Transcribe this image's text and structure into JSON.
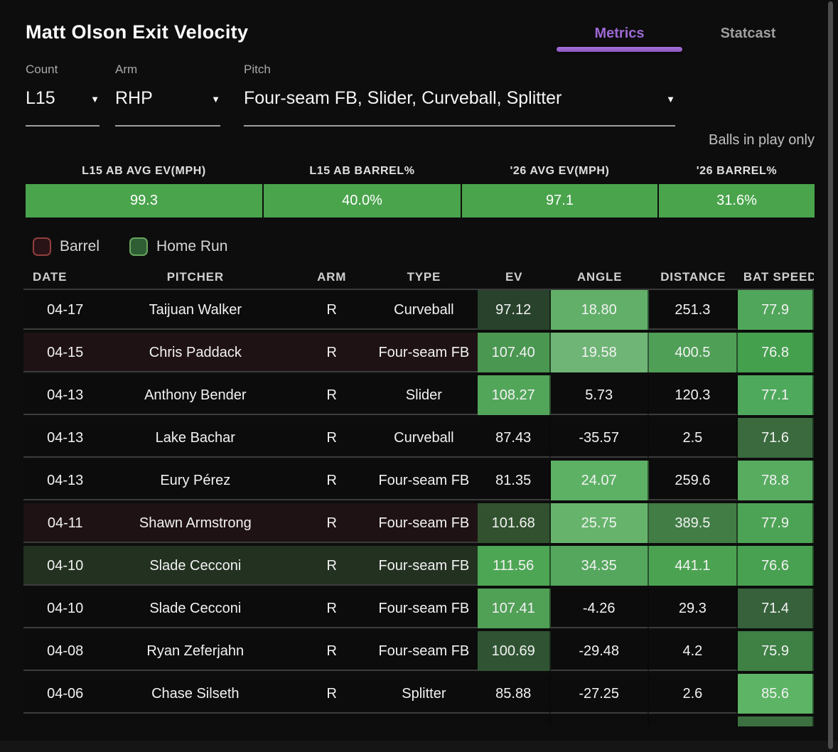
{
  "page": {
    "title": "Matt Olson Exit Velocity",
    "note": "Balls in play only"
  },
  "tabs": [
    {
      "label": "Metrics",
      "active": true
    },
    {
      "label": "Statcast",
      "active": false
    }
  ],
  "filters": [
    {
      "label": "Count",
      "value": "L15"
    },
    {
      "label": "Arm",
      "value": "RHP"
    },
    {
      "label": "Pitch",
      "value": "Four-seam FB, Slider, Curveball, Splitter"
    }
  ],
  "summary": [
    {
      "label": "L15 AB AVG EV(MPH)",
      "value": "99.3"
    },
    {
      "label": "L15 AB BARREL%",
      "value": "40.0%"
    },
    {
      "label": "'26 AVG EV(MPH)",
      "value": "97.1"
    },
    {
      "label": "'26 BARREL%",
      "value": "31.6%"
    }
  ],
  "legend": [
    {
      "label": "Barrel",
      "fill": "#291316",
      "border": "#91403f"
    },
    {
      "label": "Home Run",
      "fill": "#2f5d34",
      "border": "#68a55e"
    }
  ],
  "colors": {
    "accent_purple": "#9d68d3",
    "summary_green": "#4aa44c",
    "barrel_row_bg": "#1e1214",
    "home_run_row_bg": "#223120"
  },
  "table": {
    "columns": [
      "DATE",
      "PITCHER",
      "ARM",
      "TYPE",
      "EV",
      "ANGLE",
      "DISTANCE",
      "BAT SPEED"
    ],
    "rows": [
      {
        "date": "04-17",
        "pitcher": "Taijuan Walker",
        "arm": "R",
        "type": "Curveball",
        "ev": "97.12",
        "angle": "18.80",
        "distance": "251.3",
        "bat_speed": "77.9",
        "highlight": null,
        "heat": {
          "ev": "#28422c",
          "angle": "#61af68",
          "distance": null,
          "bat_speed": "#50a65a"
        }
      },
      {
        "date": "04-15",
        "pitcher": "Chris Paddack",
        "arm": "R",
        "type": "Four-seam FB",
        "ev": "107.40",
        "angle": "19.58",
        "distance": "400.5",
        "bat_speed": "76.8",
        "highlight": "barrel",
        "heat": {
          "ev": "#4a9751",
          "angle": "#6fb576",
          "distance": "#4f9f56",
          "bat_speed": "#45a04e"
        }
      },
      {
        "date": "04-13",
        "pitcher": "Anthony Bender",
        "arm": "R",
        "type": "Slider",
        "ev": "108.27",
        "angle": "5.73",
        "distance": "120.3",
        "bat_speed": "77.1",
        "highlight": null,
        "heat": {
          "ev": "#52a65a",
          "angle": null,
          "distance": null,
          "bat_speed": "#4ea95c"
        }
      },
      {
        "date": "04-13",
        "pitcher": "Lake Bachar",
        "arm": "R",
        "type": "Curveball",
        "ev": "87.43",
        "angle": "-35.57",
        "distance": "2.5",
        "bat_speed": "71.6",
        "highlight": null,
        "heat": {
          "ev": null,
          "angle": null,
          "distance": null,
          "bat_speed": "#3a6a3e"
        }
      },
      {
        "date": "04-13",
        "pitcher": "Eury Pérez",
        "arm": "R",
        "type": "Four-seam FB",
        "ev": "81.35",
        "angle": "24.07",
        "distance": "259.6",
        "bat_speed": "78.8",
        "highlight": null,
        "heat": {
          "ev": null,
          "angle": "#5db165",
          "distance": null,
          "bat_speed": "#57ac60"
        }
      },
      {
        "date": "04-11",
        "pitcher": "Shawn Armstrong",
        "arm": "R",
        "type": "Four-seam FB",
        "ev": "101.68",
        "angle": "25.75",
        "distance": "389.5",
        "bat_speed": "77.9",
        "highlight": "barrel",
        "heat": {
          "ev": "#32522f",
          "angle": "#66b46c",
          "distance": "#417d45",
          "bat_speed": "#4da355"
        }
      },
      {
        "date": "04-10",
        "pitcher": "Slade Cecconi",
        "arm": "R",
        "type": "Four-seam FB",
        "ev": "111.56",
        "angle": "34.35",
        "distance": "441.1",
        "bat_speed": "76.6",
        "highlight": "hr",
        "heat": {
          "ev": "#4da654",
          "angle": "#55a75d",
          "distance": "#4ba351",
          "bat_speed": "#48a150"
        }
      },
      {
        "date": "04-10",
        "pitcher": "Slade Cecconi",
        "arm": "R",
        "type": "Four-seam FB",
        "ev": "107.41",
        "angle": "-4.26",
        "distance": "29.3",
        "bat_speed": "71.4",
        "highlight": null,
        "heat": {
          "ev": "#50a056",
          "angle": null,
          "distance": null,
          "bat_speed": "#36613b"
        }
      },
      {
        "date": "04-08",
        "pitcher": "Ryan Zeferjahn",
        "arm": "R",
        "type": "Four-seam FB",
        "ev": "100.69",
        "angle": "-29.48",
        "distance": "4.2",
        "bat_speed": "75.9",
        "highlight": null,
        "heat": {
          "ev": "#305433",
          "angle": null,
          "distance": null,
          "bat_speed": "#3f8045"
        }
      },
      {
        "date": "04-06",
        "pitcher": "Chase Silseth",
        "arm": "R",
        "type": "Splitter",
        "ev": "85.88",
        "angle": "-27.25",
        "distance": "2.6",
        "bat_speed": "85.6",
        "highlight": null,
        "heat": {
          "ev": null,
          "angle": null,
          "distance": null,
          "bat_speed": "#5db465"
        }
      }
    ],
    "partial_row": {
      "bat_speed_color": "#3c7040"
    }
  }
}
